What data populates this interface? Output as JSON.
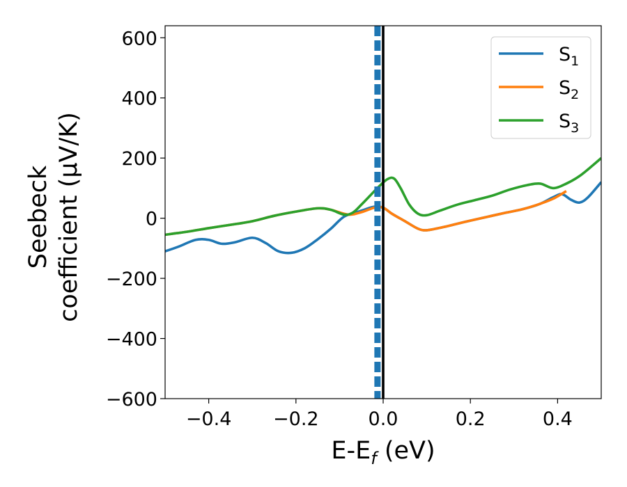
{
  "chart_data": {
    "type": "line",
    "xlabel": {
      "main": "E-E",
      "sub": "f",
      "unit": " (eV)"
    },
    "ylabel": {
      "line1": "Seebeck",
      "line2": "coefficient  (μV/K)"
    },
    "xlim": [
      -0.5,
      0.5
    ],
    "ylim": [
      -600,
      640
    ],
    "xticks": [
      -0.4,
      -0.2,
      0.0,
      0.2,
      0.4
    ],
    "xtick_labels": [
      "−0.4",
      "−0.2",
      "0.0",
      "0.2",
      "0.4"
    ],
    "yticks": [
      -600,
      -400,
      -200,
      0,
      200,
      400,
      600
    ],
    "ytick_labels": [
      "−600",
      "−400",
      "−200",
      "0",
      "200",
      "400",
      "600"
    ],
    "grid": false,
    "legend_position": "top-right",
    "vlines": [
      {
        "x": -0.013,
        "style": "dashed",
        "color": "#1f77b4"
      },
      {
        "x": 0.0,
        "style": "solid",
        "color": "#000000"
      }
    ],
    "series": [
      {
        "name": "S",
        "name_sub": "1",
        "color": "#1f77b4",
        "x": [
          -0.5,
          -0.47,
          -0.43,
          -0.4,
          -0.37,
          -0.34,
          -0.3,
          -0.27,
          -0.24,
          -0.21,
          -0.18,
          -0.15,
          -0.12,
          -0.09,
          -0.06,
          -0.04,
          -0.02,
          0.0,
          0.02,
          0.05,
          0.08,
          0.1,
          0.13,
          0.16,
          0.2,
          0.24,
          0.28,
          0.32,
          0.36,
          0.39,
          0.41,
          0.43,
          0.45,
          0.47,
          0.5
        ],
        "y": [
          -110,
          -95,
          -72,
          -72,
          -85,
          -80,
          -65,
          -82,
          -110,
          -115,
          -100,
          -70,
          -35,
          5,
          20,
          30,
          38,
          35,
          15,
          -10,
          -35,
          -40,
          -32,
          -22,
          -8,
          5,
          18,
          30,
          48,
          70,
          80,
          62,
          52,
          70,
          120
        ]
      },
      {
        "name": "S",
        "name_sub": "2",
        "color": "#ff7f0e",
        "x": [
          -0.5,
          -0.45,
          -0.4,
          -0.35,
          -0.3,
          -0.25,
          -0.2,
          -0.15,
          -0.12,
          -0.08,
          -0.05,
          -0.02,
          0.0,
          0.02,
          0.05,
          0.08,
          0.1,
          0.13,
          0.16,
          0.2,
          0.24,
          0.28,
          0.32,
          0.36,
          0.39,
          0.42
        ],
        "y": [
          -55,
          -45,
          -33,
          -22,
          -10,
          8,
          22,
          33,
          28,
          12,
          20,
          35,
          35,
          15,
          -10,
          -35,
          -40,
          -32,
          -22,
          -8,
          5,
          18,
          30,
          48,
          65,
          90
        ]
      },
      {
        "name": "S",
        "name_sub": "3",
        "color": "#2ca02c",
        "x": [
          -0.5,
          -0.45,
          -0.4,
          -0.35,
          -0.3,
          -0.25,
          -0.2,
          -0.15,
          -0.12,
          -0.09,
          -0.07,
          -0.05,
          -0.03,
          -0.01,
          0.01,
          0.025,
          0.04,
          0.06,
          0.08,
          0.1,
          0.13,
          0.17,
          0.21,
          0.25,
          0.29,
          0.33,
          0.36,
          0.39,
          0.42,
          0.45,
          0.48,
          0.5
        ],
        "y": [
          -55,
          -45,
          -33,
          -22,
          -10,
          8,
          22,
          33,
          28,
          12,
          18,
          45,
          75,
          105,
          130,
          132,
          100,
          45,
          15,
          10,
          25,
          45,
          60,
          75,
          95,
          110,
          115,
          100,
          115,
          140,
          175,
          200
        ]
      }
    ]
  }
}
